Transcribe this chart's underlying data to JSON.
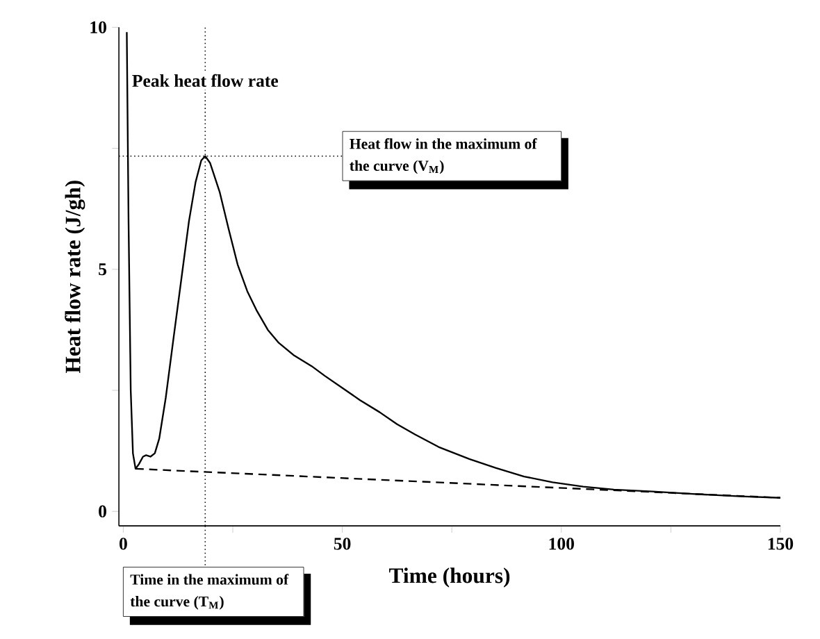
{
  "chart_data": {
    "type": "line",
    "xlabel": "Time (hours)",
    "ylabel": "Heat flow rate (J/gh)",
    "xlim": [
      -1,
      150
    ],
    "ylim": [
      -0.3,
      10
    ],
    "xticks": [
      0,
      {
        "value": 25,
        "label": null
      },
      50,
      {
        "value": 75,
        "label": null
      },
      100,
      {
        "value": 125,
        "label": null
      },
      150
    ],
    "yticks": [
      0,
      {
        "value": 2.5,
        "label": null
      },
      5,
      {
        "value": 7.5,
        "label": null
      },
      10
    ],
    "series": [
      {
        "color": "#000000",
        "line_style": "solid",
        "x": [
          0.8,
          1.2,
          1.7,
          2.2,
          2.8,
          3.6,
          4.5,
          5.2,
          6.2,
          7.2,
          8.2,
          9.7,
          11.5,
          13.4,
          15,
          16.5,
          17.8,
          18.7,
          19.8,
          22,
          24,
          26.1,
          28.3,
          30.5,
          33,
          35.5,
          39,
          43,
          46,
          50,
          54,
          58.5,
          62.5,
          66.6,
          72,
          79,
          85,
          91.5,
          98,
          105,
          112,
          120.8,
          130,
          141,
          150
        ],
        "values": [
          9.9,
          6.0,
          2.5,
          1.2,
          0.88,
          0.98,
          1.13,
          1.16,
          1.13,
          1.2,
          1.5,
          2.35,
          3.6,
          4.9,
          6.0,
          6.8,
          7.25,
          7.34,
          7.2,
          6.6,
          5.85,
          5.1,
          4.55,
          4.14,
          3.75,
          3.48,
          3.22,
          3.0,
          2.8,
          2.55,
          2.3,
          2.05,
          1.8,
          1.59,
          1.33,
          1.08,
          0.9,
          0.72,
          0.6,
          0.51,
          0.45,
          0.41,
          0.36,
          0.31,
          0.28
        ]
      },
      {
        "color": "#000000",
        "line_style": "dashed",
        "x": [
          2.8,
          150
        ],
        "values": [
          0.88,
          0.28
        ]
      }
    ],
    "ref_lines": [
      {
        "axis": "x",
        "value": 18.7,
        "label": "Time in the maximum of the curve (T$_{M}$)",
        "line_style": "dotted"
      },
      {
        "axis": "y",
        "value": 7.34,
        "label": "Heat flow in the maximum of the curve (V$_{M}$)",
        "line_style": "dotted"
      }
    ],
    "annotations": [
      {
        "text": "Peak heat flow rate",
        "x": 18.7,
        "y": 8.9
      }
    ],
    "grid": false,
    "marker": "none"
  }
}
